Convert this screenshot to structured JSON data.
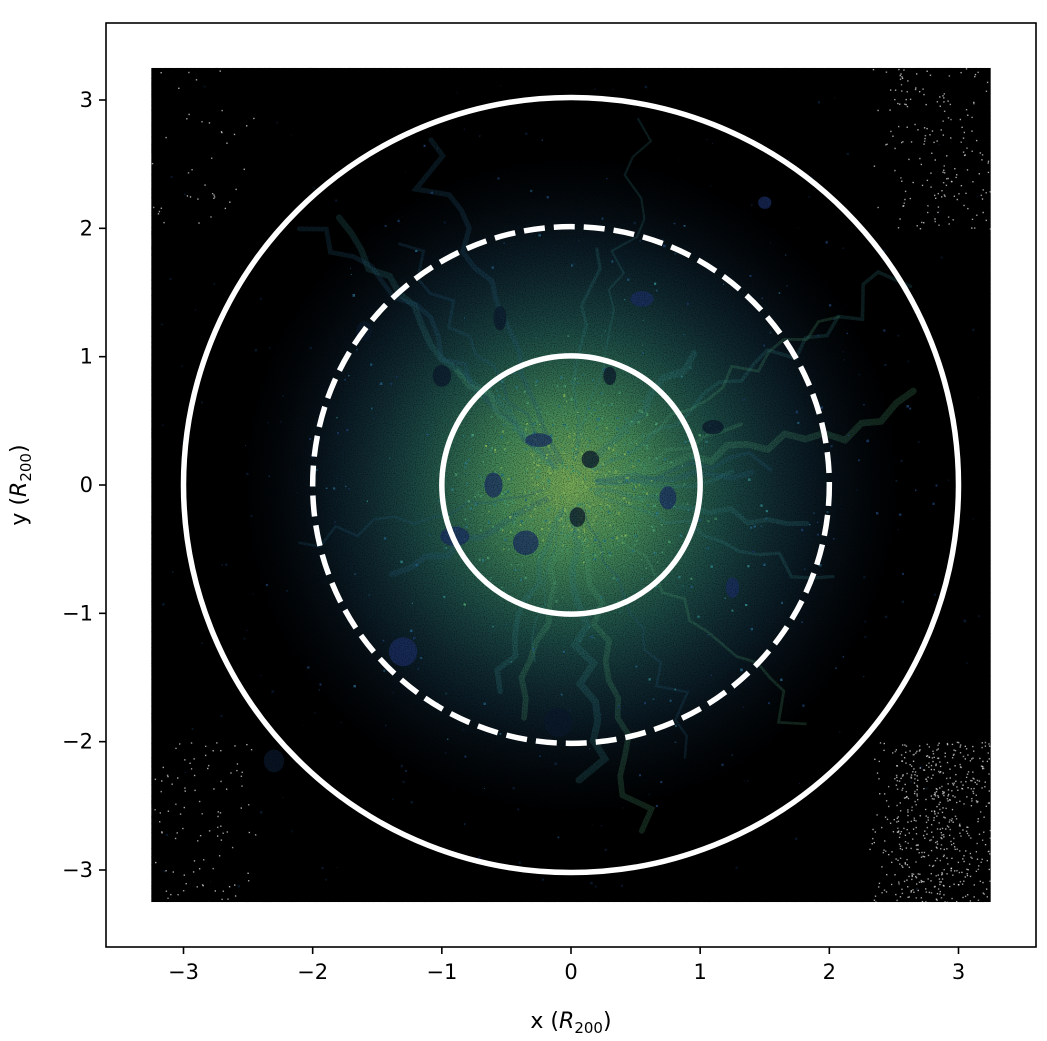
{
  "chart_data": {
    "type": "scatter",
    "title": "",
    "xlabel": {
      "prefix": "x (",
      "symbol": "R",
      "subscript": "200",
      "suffix": ")"
    },
    "ylabel": {
      "prefix": "y (",
      "symbol": "R",
      "subscript": "200",
      "suffix": ")"
    },
    "xlim": [
      -3.6,
      3.6
    ],
    "ylim": [
      -3.6,
      3.6
    ],
    "xticks": [
      -3,
      -2,
      -1,
      0,
      1,
      2,
      3
    ],
    "yticks": [
      -3,
      -2,
      -1,
      0,
      1,
      2,
      3
    ],
    "xtick_labels": [
      "−3",
      "−2",
      "−1",
      "0",
      "1",
      "2",
      "3"
    ],
    "ytick_labels": [
      "−3",
      "−2",
      "−1",
      "0",
      "1",
      "2",
      "3"
    ],
    "grid": false,
    "particle_extent": {
      "x": [
        -3.25,
        3.25
      ],
      "y": [
        -3.25,
        3.25
      ]
    },
    "circles": [
      {
        "radius": 1,
        "center": [
          0,
          0
        ],
        "style": "solid",
        "color": "#ffffff"
      },
      {
        "radius": 2,
        "center": [
          0,
          0
        ],
        "style": "dashed",
        "color": "#ffffff"
      },
      {
        "radius": 3,
        "center": [
          0,
          0
        ],
        "style": "solid",
        "color": "#ffffff"
      }
    ],
    "colormap": [
      "#000000",
      "#0b1a2e",
      "#1b3a63",
      "#235b7a",
      "#2e7d80",
      "#4a9b6e",
      "#7db35c"
    ],
    "substructures": [
      {
        "x": 0.15,
        "y": 0.2
      },
      {
        "x": -0.25,
        "y": 0.35
      },
      {
        "x": -0.35,
        "y": -0.45
      },
      {
        "x": 0.05,
        "y": -0.25
      },
      {
        "x": -0.55,
        "y": 1.3
      },
      {
        "x": 0.55,
        "y": 1.45
      },
      {
        "x": -1.0,
        "y": 0.85
      },
      {
        "x": -1.6,
        "y": 1.2
      },
      {
        "x": 1.1,
        "y": 0.45
      },
      {
        "x": 1.25,
        "y": -0.8
      },
      {
        "x": -0.1,
        "y": -1.85
      },
      {
        "x": -2.3,
        "y": -2.15
      },
      {
        "x": -0.9,
        "y": -0.4
      },
      {
        "x": 0.75,
        "y": -0.1
      },
      {
        "x": -1.3,
        "y": -1.3
      },
      {
        "x": 1.5,
        "y": 2.2
      },
      {
        "x": 0.3,
        "y": 0.85
      },
      {
        "x": -0.6,
        "y": 0.0
      }
    ]
  }
}
